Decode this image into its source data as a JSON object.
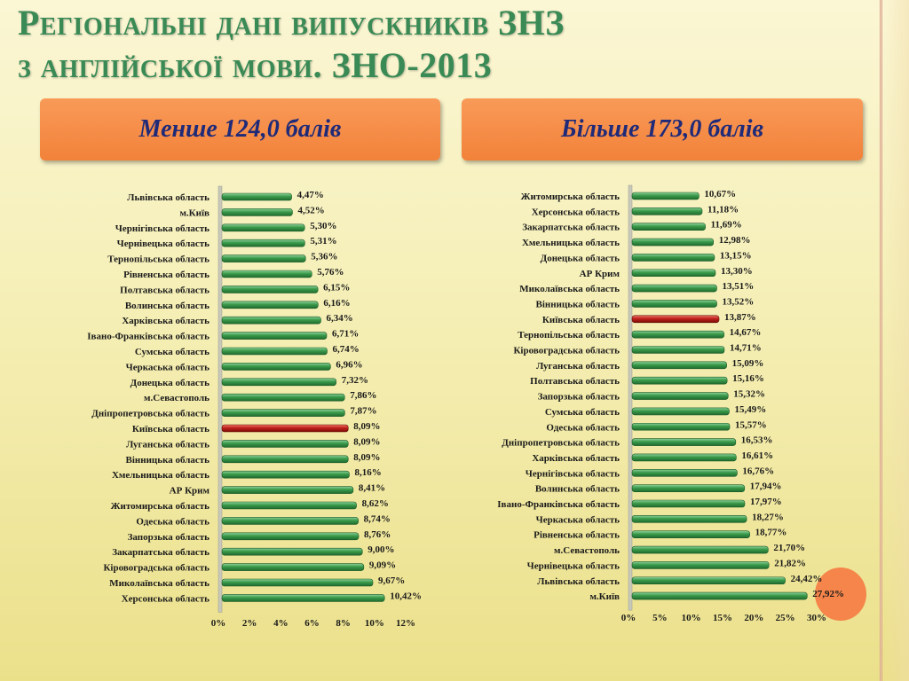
{
  "title": {
    "line1": "Регіональні дані випускників ЗНЗ",
    "line2": "з англійської мови. ЗНО-2013"
  },
  "boxes": {
    "left": "Менше 124,0 балів",
    "right": "Більше 173,0 балів"
  },
  "colors": {
    "bar": "#3a9a4a",
    "highlight": "#c0201a",
    "accent": "#f2823a"
  },
  "chart_data": [
    {
      "type": "bar",
      "orientation": "horizontal",
      "categories": [
        "Львівська область",
        "м.Київ",
        "Чернігівська область",
        "Чернівецька область",
        "Тернопільська область",
        "Рівненська область",
        "Полтавська область",
        "Волинська область",
        "Харківська область",
        "Івано-Франківська область",
        "Сумська область",
        "Черкаська область",
        "Донецька область",
        "м.Севастополь",
        "Дніпропетровська область",
        "Київська область",
        "Луганська область",
        "Вінницька область",
        "Хмельницька область",
        "АР Крим",
        "Житомирська область",
        "Одеська область",
        "Запорзька область",
        "Закарпатська область",
        "Кіровоградська область",
        "Миколаївська область",
        "Херсонська область"
      ],
      "values": [
        4.47,
        4.52,
        5.3,
        5.31,
        5.36,
        5.76,
        6.15,
        6.16,
        6.34,
        6.71,
        6.74,
        6.96,
        7.32,
        7.86,
        7.87,
        8.09,
        8.09,
        8.09,
        8.16,
        8.41,
        8.62,
        8.74,
        8.76,
        9.0,
        9.09,
        9.67,
        10.42
      ],
      "labels": [
        "4,47%",
        "4,52%",
        "5,30%",
        "5,31%",
        "5,36%",
        "5,76%",
        "6,15%",
        "6,16%",
        "6,34%",
        "6,71%",
        "6,74%",
        "6,96%",
        "7,32%",
        "7,86%",
        "7,87%",
        "8,09%",
        "8,09%",
        "8,09%",
        "8,16%",
        "8,41%",
        "8,62%",
        "8,74%",
        "8,76%",
        "9,00%",
        "9,09%",
        "9,67%",
        "10,42%"
      ],
      "highlight": "Київська область",
      "xlim": [
        0,
        12
      ],
      "xticks": [
        "0%",
        "2%",
        "4%",
        "6%",
        "8%",
        "10%",
        "12%"
      ]
    },
    {
      "type": "bar",
      "orientation": "horizontal",
      "categories": [
        "Житомирська область",
        "Херсонська область",
        "Закарпатська область",
        "Хмельницька область",
        "Донецька область",
        "АР Крим",
        "Миколаївська область",
        "Вінницька область",
        "Київська область",
        "Тернопільська область",
        "Кіровоградська область",
        "Луганська область",
        "Полтавська область",
        "Запорзька область",
        "Сумська область",
        "Одеська область",
        "Дніпропетровська область",
        "Харківська область",
        "Чернігівська область",
        "Волинська область",
        "Івано-Франківська область",
        "Черкаська область",
        "Рівненська область",
        "м.Севастополь",
        "Чернівецька область",
        "Львівська область",
        "м.Київ"
      ],
      "values": [
        10.67,
        11.18,
        11.69,
        12.98,
        13.15,
        13.3,
        13.51,
        13.52,
        13.87,
        14.67,
        14.71,
        15.09,
        15.16,
        15.32,
        15.49,
        15.57,
        16.53,
        16.61,
        16.76,
        17.94,
        17.97,
        18.27,
        18.77,
        21.7,
        21.82,
        24.42,
        27.92
      ],
      "labels": [
        "10,67%",
        "11,18%",
        "11,69%",
        "12,98%",
        "13,15%",
        "13,30%",
        "13,51%",
        "13,52%",
        "13,87%",
        "14,67%",
        "14,71%",
        "15,09%",
        "15,16%",
        "15,32%",
        "15,49%",
        "15,57%",
        "16,53%",
        "16,61%",
        "16,76%",
        "17,94%",
        "17,97%",
        "18,27%",
        "18,77%",
        "21,70%",
        "21,82%",
        "24,42%",
        "27,92%"
      ],
      "highlight": "Київська область",
      "xlim": [
        0,
        30
      ],
      "xticks": [
        "0%",
        "5%",
        "10%",
        "15%",
        "20%",
        "25%",
        "30%"
      ]
    }
  ]
}
